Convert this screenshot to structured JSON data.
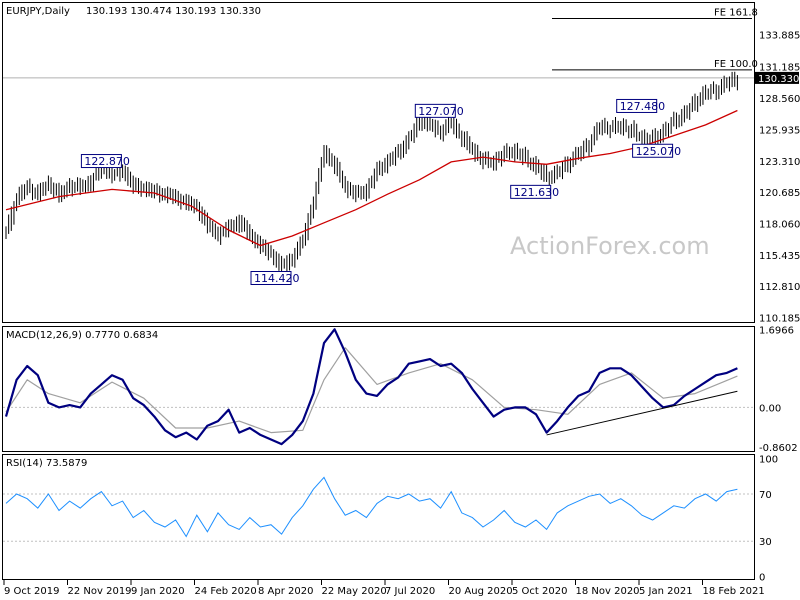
{
  "chart_data": [
    {
      "type": "candlestick",
      "symbol_header": "EURJPY,Daily",
      "ohlc_header": "130.193 130.474 130.193 130.330",
      "y_tick_labels": [
        "133.885",
        "131.185",
        "128.560",
        "125.935",
        "123.310",
        "120.685",
        "118.060",
        "115.435",
        "112.810",
        "110.185"
      ],
      "ylim": [
        109.9,
        136.6
      ],
      "current_price": "130.330",
      "x_tick_labels": [
        "9 Oct 2019",
        "22 Nov 2019",
        "9 Jan 2020",
        "24 Feb 2020",
        "8 Apr 2020",
        "22 May 2020",
        "7 Jul 2020",
        "20 Aug 2020",
        "5 Oct 2020",
        "18 Nov 2020",
        "5 Jan 2021",
        "18 Feb 2021"
      ],
      "annotations": [
        {
          "text": "122.870",
          "value": 122.87
        },
        {
          "text": "114.420",
          "value": 114.42
        },
        {
          "text": "127.070",
          "value": 127.07
        },
        {
          "text": "121.630",
          "value": 121.63
        },
        {
          "text": "127.480",
          "value": 127.48
        },
        {
          "text": "125.070",
          "value": 125.07
        }
      ],
      "levels": [
        {
          "text": "FE 161.8",
          "value": 135.3
        },
        {
          "text": "FE 100.0",
          "value": 131.0
        }
      ],
      "close_path": [
        [
          0,
          117.5
        ],
        [
          4,
          120.3
        ],
        [
          8,
          121.2
        ],
        [
          12,
          120.6
        ],
        [
          16,
          121.5
        ],
        [
          20,
          120.5
        ],
        [
          24,
          121.3
        ],
        [
          28,
          121.2
        ],
        [
          32,
          121.6
        ],
        [
          36,
          122.9
        ],
        [
          40,
          122.2
        ],
        [
          44,
          122.6
        ],
        [
          48,
          121.3
        ],
        [
          52,
          121.1
        ],
        [
          56,
          120.8
        ],
        [
          60,
          120.6
        ],
        [
          64,
          120.3
        ],
        [
          68,
          119.9
        ],
        [
          72,
          119.5
        ],
        [
          76,
          118.0
        ],
        [
          80,
          117.2
        ],
        [
          84,
          117.8
        ],
        [
          88,
          118.3
        ],
        [
          92,
          117.2
        ],
        [
          96,
          116.3
        ],
        [
          100,
          115.6
        ],
        [
          104,
          114.5
        ],
        [
          108,
          115.2
        ],
        [
          112,
          116.8
        ],
        [
          116,
          120.0
        ],
        [
          120,
          124.2
        ],
        [
          124,
          123.0
        ],
        [
          128,
          121.2
        ],
        [
          132,
          120.6
        ],
        [
          136,
          120.9
        ],
        [
          140,
          122.6
        ],
        [
          144,
          123.3
        ],
        [
          148,
          124.1
        ],
        [
          152,
          125.2
        ],
        [
          156,
          126.7
        ],
        [
          160,
          126.4
        ],
        [
          164,
          125.8
        ],
        [
          168,
          126.6
        ],
        [
          172,
          125.3
        ],
        [
          176,
          124.3
        ],
        [
          180,
          123.4
        ],
        [
          184,
          123.3
        ],
        [
          188,
          124.0
        ],
        [
          192,
          124.2
        ],
        [
          196,
          123.6
        ],
        [
          200,
          122.9
        ],
        [
          204,
          122.0
        ],
        [
          208,
          122.4
        ],
        [
          212,
          123.2
        ],
        [
          216,
          124.0
        ],
        [
          220,
          124.8
        ],
        [
          224,
          126.3
        ],
        [
          228,
          126.1
        ],
        [
          232,
          126.3
        ],
        [
          236,
          125.9
        ],
        [
          240,
          125.3
        ],
        [
          244,
          125.2
        ],
        [
          248,
          125.8
        ],
        [
          252,
          126.7
        ],
        [
          256,
          127.3
        ],
        [
          260,
          128.3
        ],
        [
          264,
          129.1
        ],
        [
          268,
          129.3
        ],
        [
          272,
          129.9
        ],
        [
          276,
          130.3
        ]
      ],
      "ma_path": [
        [
          0,
          119.3
        ],
        [
          20,
          120.4
        ],
        [
          40,
          121.0
        ],
        [
          56,
          120.7
        ],
        [
          70,
          119.6
        ],
        [
          84,
          117.6
        ],
        [
          96,
          116.3
        ],
        [
          108,
          117.1
        ],
        [
          120,
          118.2
        ],
        [
          132,
          119.3
        ],
        [
          144,
          120.6
        ],
        [
          156,
          121.8
        ],
        [
          168,
          123.3
        ],
        [
          180,
          123.7
        ],
        [
          192,
          123.3
        ],
        [
          204,
          123.1
        ],
        [
          216,
          123.6
        ],
        [
          228,
          124.0
        ],
        [
          240,
          124.6
        ],
        [
          252,
          125.5
        ],
        [
          264,
          126.4
        ],
        [
          276,
          127.6
        ]
      ]
    },
    {
      "type": "line",
      "title": "MACD(12,26,9) 0.7770 0.6834",
      "y_tick_labels": [
        "1.6966",
        "0.00",
        "-0.8602"
      ],
      "ylim": [
        -0.95,
        1.75
      ],
      "series": [
        {
          "values": [
            [
              0,
              -0.2
            ],
            [
              4,
              0.6
            ],
            [
              8,
              0.9
            ],
            [
              12,
              0.7
            ],
            [
              16,
              0.1
            ],
            [
              20,
              0.0
            ],
            [
              24,
              0.05
            ],
            [
              28,
              0.0
            ],
            [
              32,
              0.3
            ],
            [
              36,
              0.5
            ],
            [
              40,
              0.7
            ],
            [
              44,
              0.6
            ],
            [
              48,
              0.2
            ],
            [
              52,
              0.05
            ],
            [
              56,
              -0.2
            ],
            [
              60,
              -0.5
            ],
            [
              64,
              -0.65
            ],
            [
              68,
              -0.55
            ],
            [
              72,
              -0.7
            ],
            [
              76,
              -0.4
            ],
            [
              80,
              -0.3
            ],
            [
              84,
              -0.05
            ],
            [
              88,
              -0.55
            ],
            [
              92,
              -0.45
            ],
            [
              96,
              -0.6
            ],
            [
              100,
              -0.7
            ],
            [
              104,
              -0.8
            ],
            [
              108,
              -0.6
            ],
            [
              112,
              -0.3
            ],
            [
              116,
              0.3
            ],
            [
              120,
              1.4
            ],
            [
              124,
              1.7
            ],
            [
              128,
              1.2
            ],
            [
              132,
              0.6
            ],
            [
              136,
              0.3
            ],
            [
              140,
              0.25
            ],
            [
              144,
              0.5
            ],
            [
              148,
              0.65
            ],
            [
              152,
              0.95
            ],
            [
              156,
              1.0
            ],
            [
              160,
              1.05
            ],
            [
              164,
              0.9
            ],
            [
              168,
              0.95
            ],
            [
              172,
              0.75
            ],
            [
              176,
              0.4
            ],
            [
              180,
              0.1
            ],
            [
              184,
              -0.2
            ],
            [
              188,
              -0.05
            ],
            [
              192,
              0.0
            ],
            [
              196,
              0.0
            ],
            [
              200,
              -0.15
            ],
            [
              204,
              -0.55
            ],
            [
              208,
              -0.3
            ],
            [
              212,
              0.0
            ],
            [
              216,
              0.25
            ],
            [
              220,
              0.35
            ],
            [
              224,
              0.75
            ],
            [
              228,
              0.85
            ],
            [
              232,
              0.85
            ],
            [
              236,
              0.7
            ],
            [
              240,
              0.45
            ],
            [
              244,
              0.2
            ],
            [
              248,
              0.0
            ],
            [
              252,
              0.05
            ],
            [
              256,
              0.25
            ],
            [
              260,
              0.4
            ],
            [
              264,
              0.55
            ],
            [
              268,
              0.7
            ],
            [
              272,
              0.75
            ],
            [
              276,
              0.85
            ]
          ]
        },
        {
          "values": [
            [
              0,
              -0.1
            ],
            [
              8,
              0.6
            ],
            [
              16,
              0.3
            ],
            [
              28,
              0.1
            ],
            [
              40,
              0.55
            ],
            [
              52,
              0.2
            ],
            [
              64,
              -0.45
            ],
            [
              76,
              -0.45
            ],
            [
              88,
              -0.3
            ],
            [
              100,
              -0.55
            ],
            [
              112,
              -0.5
            ],
            [
              120,
              0.6
            ],
            [
              128,
              1.3
            ],
            [
              140,
              0.5
            ],
            [
              152,
              0.75
            ],
            [
              164,
              0.95
            ],
            [
              176,
              0.6
            ],
            [
              188,
              0.0
            ],
            [
              200,
              -0.05
            ],
            [
              212,
              -0.15
            ],
            [
              224,
              0.5
            ],
            [
              236,
              0.75
            ],
            [
              248,
              0.2
            ],
            [
              260,
              0.3
            ],
            [
              276,
              0.68
            ]
          ]
        }
      ],
      "trendline": [
        [
          204,
          -0.6
        ],
        [
          276,
          0.35
        ]
      ]
    },
    {
      "type": "line",
      "title": "RSI(14) 73.5879",
      "y_tick_labels": [
        "100",
        "70",
        "30",
        "0"
      ],
      "ylim": [
        0,
        100
      ],
      "series": [
        {
          "values": [
            [
              0,
              62
            ],
            [
              4,
              70
            ],
            [
              8,
              66
            ],
            [
              12,
              58
            ],
            [
              16,
              70
            ],
            [
              20,
              56
            ],
            [
              24,
              64
            ],
            [
              28,
              58
            ],
            [
              32,
              66
            ],
            [
              36,
              72
            ],
            [
              40,
              60
            ],
            [
              44,
              64
            ],
            [
              48,
              50
            ],
            [
              52,
              56
            ],
            [
              56,
              46
            ],
            [
              60,
              42
            ],
            [
              64,
              48
            ],
            [
              68,
              34
            ],
            [
              72,
              52
            ],
            [
              76,
              38
            ],
            [
              80,
              54
            ],
            [
              84,
              44
            ],
            [
              88,
              40
            ],
            [
              92,
              50
            ],
            [
              96,
              42
            ],
            [
              100,
              44
            ],
            [
              104,
              36
            ],
            [
              108,
              50
            ],
            [
              112,
              60
            ],
            [
              116,
              74
            ],
            [
              120,
              84
            ],
            [
              124,
              66
            ],
            [
              128,
              52
            ],
            [
              132,
              56
            ],
            [
              136,
              50
            ],
            [
              140,
              62
            ],
            [
              144,
              68
            ],
            [
              148,
              66
            ],
            [
              152,
              70
            ],
            [
              156,
              64
            ],
            [
              160,
              66
            ],
            [
              164,
              58
            ],
            [
              168,
              72
            ],
            [
              172,
              54
            ],
            [
              176,
              50
            ],
            [
              180,
              42
            ],
            [
              184,
              48
            ],
            [
              188,
              56
            ],
            [
              192,
              46
            ],
            [
              196,
              42
            ],
            [
              200,
              48
            ],
            [
              204,
              40
            ],
            [
              208,
              54
            ],
            [
              212,
              60
            ],
            [
              216,
              64
            ],
            [
              220,
              68
            ],
            [
              224,
              70
            ],
            [
              228,
              62
            ],
            [
              232,
              66
            ],
            [
              236,
              60
            ],
            [
              240,
              52
            ],
            [
              244,
              48
            ],
            [
              248,
              54
            ],
            [
              252,
              60
            ],
            [
              256,
              58
            ],
            [
              260,
              66
            ],
            [
              264,
              70
            ],
            [
              268,
              64
            ],
            [
              272,
              72
            ],
            [
              276,
              74
            ]
          ]
        }
      ]
    }
  ],
  "watermark": "ActionForex.com",
  "colors": {
    "candle": "#000000",
    "ma": "#cc0000",
    "label": "#000080",
    "macd": "#000080",
    "signal": "#a0a0a0",
    "rsi": "#1e90ff",
    "grid": "#c0c0c0"
  }
}
